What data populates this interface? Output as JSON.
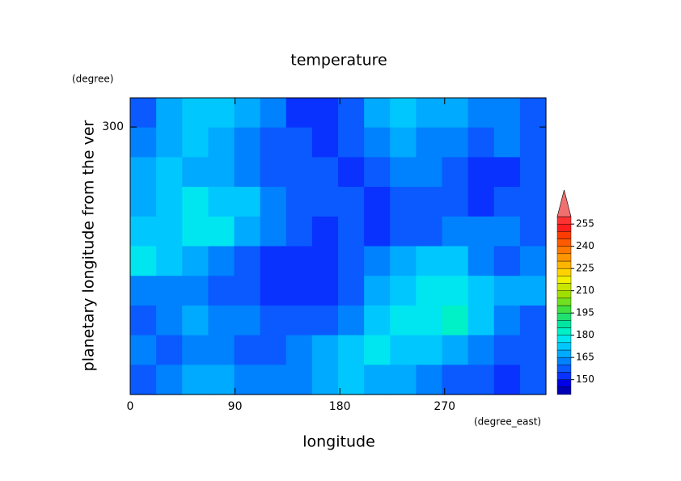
{
  "chart_data": {
    "type": "contour",
    "title": "temperature",
    "x_label": "longitude",
    "x_units": "(degree_east)",
    "y_label": "planetary longitude from the ver",
    "y_units": "(degree)",
    "xlim": [
      0,
      357
    ],
    "ylim": [
      135,
      318
    ],
    "xticks": [
      0,
      90,
      180,
      270
    ],
    "yticks": [
      300
    ],
    "z": [
      [
        158,
        165,
        172,
        170,
        165,
        160,
        152,
        150,
        158,
        168,
        170,
        168,
        165,
        162,
        160,
        158
      ],
      [
        162,
        168,
        170,
        165,
        160,
        158,
        155,
        150,
        155,
        162,
        165,
        163,
        160,
        158,
        160,
        158
      ],
      [
        165,
        170,
        168,
        165,
        160,
        158,
        157,
        155,
        152,
        155,
        160,
        160,
        155,
        152,
        152,
        155
      ],
      [
        168,
        170,
        175,
        172,
        170,
        163,
        158,
        157,
        155,
        153,
        157,
        158,
        155,
        153,
        155,
        158
      ],
      [
        170,
        172,
        178,
        175,
        168,
        160,
        155,
        153,
        155,
        153,
        155,
        158,
        160,
        163,
        160,
        158
      ],
      [
        175,
        170,
        165,
        160,
        155,
        152,
        150,
        152,
        155,
        160,
        168,
        172,
        170,
        160,
        155,
        163
      ],
      [
        160,
        162,
        160,
        158,
        155,
        153,
        150,
        150,
        157,
        165,
        170,
        175,
        175,
        170,
        165,
        168
      ],
      [
        157,
        160,
        165,
        163,
        160,
        157,
        155,
        155,
        162,
        170,
        175,
        178,
        180,
        172,
        160,
        155
      ],
      [
        160,
        158,
        162,
        160,
        158,
        157,
        160,
        165,
        172,
        175,
        172,
        170,
        165,
        160,
        155,
        158
      ],
      [
        158,
        162,
        165,
        168,
        163,
        160,
        162,
        168,
        170,
        168,
        165,
        160,
        158,
        155,
        152,
        155
      ]
    ],
    "levels": [
      140,
      145,
      150,
      155,
      160,
      165,
      170,
      175,
      180,
      185,
      190,
      195,
      200,
      205,
      210,
      215,
      220,
      225,
      230,
      235,
      240,
      245,
      250,
      255,
      260
    ],
    "colors": [
      "#0000b4",
      "#0000e6",
      "#0a32ff",
      "#0a5aff",
      "#0082ff",
      "#00aaff",
      "#00c8ff",
      "#00e6f0",
      "#00f0c8",
      "#00e6a0",
      "#20e070",
      "#40e040",
      "#70e020",
      "#a0e000",
      "#c8e600",
      "#f0f000",
      "#ffd200",
      "#ffb400",
      "#ff9600",
      "#ff7800",
      "#ff5a00",
      "#ff3c00",
      "#ff1e1e",
      "#ff3232"
    ],
    "extend_color": "#f07070",
    "colorbar_ticks": [
      150,
      165,
      180,
      195,
      210,
      225,
      240,
      255
    ]
  }
}
